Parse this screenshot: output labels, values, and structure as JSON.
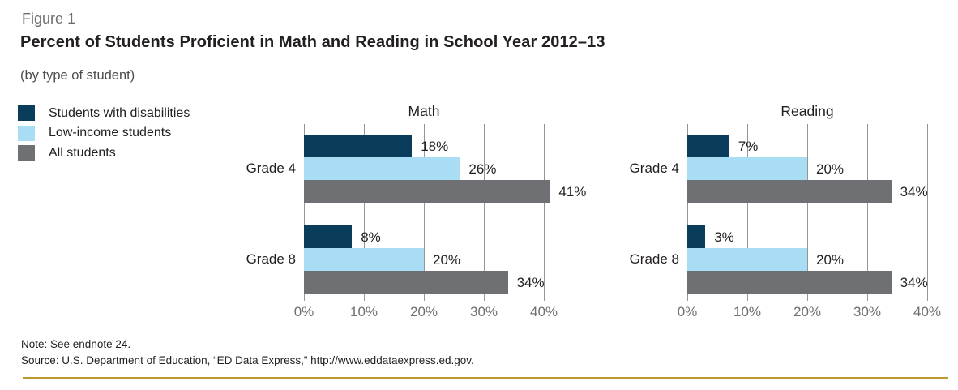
{
  "header": {
    "figure_label": "Figure 1",
    "title": "Percent of Students Proficient in Math and Reading in School Year 2012–13",
    "subtitle": "(by type of student)"
  },
  "legend": {
    "position": "outside-left",
    "items": [
      {
        "label": "Students with disabilities",
        "color": "#0a3d5c"
      },
      {
        "label": "Low-income students",
        "color": "#a8ddf3"
      },
      {
        "label": "All students",
        "color": "#6f7073"
      }
    ]
  },
  "chart_data": [
    {
      "type": "bar",
      "orientation": "horizontal",
      "title": "Math",
      "categories": [
        "Grade 4",
        "Grade 8"
      ],
      "series": [
        {
          "name": "Students with disabilities",
          "color": "#0a3d5c",
          "values": [
            18,
            8
          ]
        },
        {
          "name": "Low-income students",
          "color": "#a8ddf3",
          "values": [
            26,
            20
          ]
        },
        {
          "name": "All students",
          "color": "#6f7073",
          "values": [
            41,
            34
          ]
        }
      ],
      "xlim": [
        0,
        40
      ],
      "xticks": [
        0,
        10,
        20,
        30,
        40
      ],
      "xtick_labels": [
        "0%",
        "10%",
        "20%",
        "30%",
        "40%"
      ],
      "value_label_suffix": "%",
      "grid": true
    },
    {
      "type": "bar",
      "orientation": "horizontal",
      "title": "Reading",
      "categories": [
        "Grade 4",
        "Grade 8"
      ],
      "series": [
        {
          "name": "Students with disabilities",
          "color": "#0a3d5c",
          "values": [
            7,
            3
          ]
        },
        {
          "name": "Low-income students",
          "color": "#a8ddf3",
          "values": [
            20,
            20
          ]
        },
        {
          "name": "All students",
          "color": "#6f7073",
          "values": [
            34,
            34
          ]
        }
      ],
      "xlim": [
        0,
        40
      ],
      "xticks": [
        0,
        10,
        20,
        30,
        40
      ],
      "xtick_labels": [
        "0%",
        "10%",
        "20%",
        "30%",
        "40%"
      ],
      "value_label_suffix": "%",
      "grid": true
    }
  ],
  "footer": {
    "note": "Note: See endnote 24.",
    "source": "Source: U.S. Department of Education, “ED Data Express,” http://www.eddataexpress.ed.gov."
  },
  "colors": {
    "accent_rule": "#bf9b2f",
    "gridline": "#939598",
    "axis_text": "#6d6e71",
    "text": "#231f20"
  }
}
